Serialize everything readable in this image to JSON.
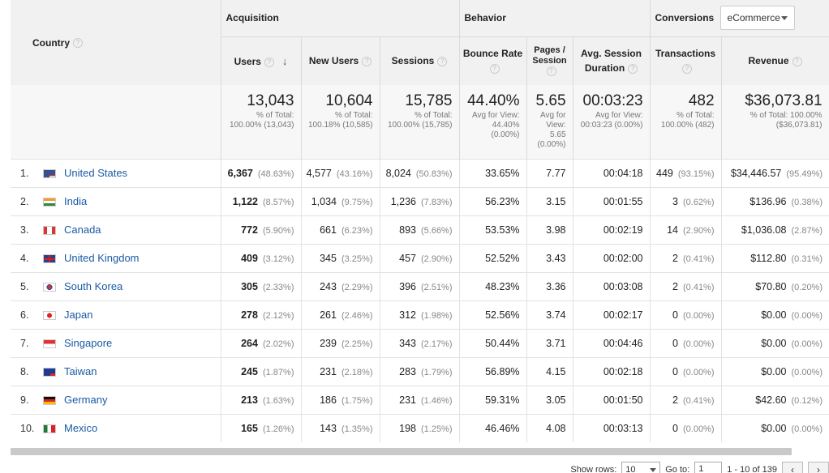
{
  "header": {
    "country": "Country",
    "acquisition": "Acquisition",
    "behavior": "Behavior",
    "conversions": "Conversions",
    "conversion_select": "eCommerce",
    "cols": {
      "users": "Users",
      "new_users": "New Users",
      "sessions": "Sessions",
      "bounce_rate": "Bounce Rate",
      "pages_session": "Pages / Session",
      "avg_session_duration": "Avg. Session Duration",
      "transactions": "Transactions",
      "revenue": "Revenue"
    }
  },
  "totals": {
    "users": {
      "value": "13,043",
      "sub": "% of Total: 100.00% (13,043)"
    },
    "new_users": {
      "value": "10,604",
      "sub": "% of Total: 100.18% (10,585)"
    },
    "sessions": {
      "value": "15,785",
      "sub": "% of Total: 100.00% (15,785)"
    },
    "bounce_rate": {
      "value": "44.40%",
      "sub": "Avg for View: 44.40% (0.00%)"
    },
    "pages_session": {
      "value": "5.65",
      "sub": "Avg for View: 5.65 (0.00%)"
    },
    "avg_session_duration": {
      "value": "00:03:23",
      "sub": "Avg for View: 00:03:23 (0.00%)"
    },
    "transactions": {
      "value": "482",
      "sub": "% of Total: 100.00% (482)"
    },
    "revenue": {
      "value": "$36,073.81",
      "sub": "% of Total: 100.00% ($36,073.81)"
    }
  },
  "rows": [
    {
      "rank": "1.",
      "country": "United States",
      "flag": "us-flag",
      "users": "6,367",
      "users_pct": "(48.63%)",
      "new_users": "4,577",
      "new_users_pct": "(43.16%)",
      "sessions": "8,024",
      "sessions_pct": "(50.83%)",
      "bounce": "33.65%",
      "pages": "7.77",
      "duration": "00:04:18",
      "trans": "449",
      "trans_pct": "(93.15%)",
      "revenue": "$34,446.57",
      "revenue_pct": "(95.49%)"
    },
    {
      "rank": "2.",
      "country": "India",
      "flag": "in-flag",
      "users": "1,122",
      "users_pct": "(8.57%)",
      "new_users": "1,034",
      "new_users_pct": "(9.75%)",
      "sessions": "1,236",
      "sessions_pct": "(7.83%)",
      "bounce": "56.23%",
      "pages": "3.15",
      "duration": "00:01:55",
      "trans": "3",
      "trans_pct": "(0.62%)",
      "revenue": "$136.96",
      "revenue_pct": "(0.38%)"
    },
    {
      "rank": "3.",
      "country": "Canada",
      "flag": "ca-flag",
      "users": "772",
      "users_pct": "(5.90%)",
      "new_users": "661",
      "new_users_pct": "(6.23%)",
      "sessions": "893",
      "sessions_pct": "(5.66%)",
      "bounce": "53.53%",
      "pages": "3.98",
      "duration": "00:02:19",
      "trans": "14",
      "trans_pct": "(2.90%)",
      "revenue": "$1,036.08",
      "revenue_pct": "(2.87%)"
    },
    {
      "rank": "4.",
      "country": "United Kingdom",
      "flag": "gb-flag",
      "users": "409",
      "users_pct": "(3.12%)",
      "new_users": "345",
      "new_users_pct": "(3.25%)",
      "sessions": "457",
      "sessions_pct": "(2.90%)",
      "bounce": "52.52%",
      "pages": "3.43",
      "duration": "00:02:00",
      "trans": "2",
      "trans_pct": "(0.41%)",
      "revenue": "$112.80",
      "revenue_pct": "(0.31%)"
    },
    {
      "rank": "5.",
      "country": "South Korea",
      "flag": "kr-flag",
      "users": "305",
      "users_pct": "(2.33%)",
      "new_users": "243",
      "new_users_pct": "(2.29%)",
      "sessions": "396",
      "sessions_pct": "(2.51%)",
      "bounce": "48.23%",
      "pages": "3.36",
      "duration": "00:03:08",
      "trans": "2",
      "trans_pct": "(0.41%)",
      "revenue": "$70.80",
      "revenue_pct": "(0.20%)"
    },
    {
      "rank": "6.",
      "country": "Japan",
      "flag": "jp-flag",
      "users": "278",
      "users_pct": "(2.12%)",
      "new_users": "261",
      "new_users_pct": "(2.46%)",
      "sessions": "312",
      "sessions_pct": "(1.98%)",
      "bounce": "52.56%",
      "pages": "3.74",
      "duration": "00:02:17",
      "trans": "0",
      "trans_pct": "(0.00%)",
      "revenue": "$0.00",
      "revenue_pct": "(0.00%)"
    },
    {
      "rank": "7.",
      "country": "Singapore",
      "flag": "sg-flag",
      "users": "264",
      "users_pct": "(2.02%)",
      "new_users": "239",
      "new_users_pct": "(2.25%)",
      "sessions": "343",
      "sessions_pct": "(2.17%)",
      "bounce": "50.44%",
      "pages": "3.71",
      "duration": "00:04:46",
      "trans": "0",
      "trans_pct": "(0.00%)",
      "revenue": "$0.00",
      "revenue_pct": "(0.00%)"
    },
    {
      "rank": "8.",
      "country": "Taiwan",
      "flag": "tw-flag",
      "users": "245",
      "users_pct": "(1.87%)",
      "new_users": "231",
      "new_users_pct": "(2.18%)",
      "sessions": "283",
      "sessions_pct": "(1.79%)",
      "bounce": "56.89%",
      "pages": "4.15",
      "duration": "00:02:18",
      "trans": "0",
      "trans_pct": "(0.00%)",
      "revenue": "$0.00",
      "revenue_pct": "(0.00%)"
    },
    {
      "rank": "9.",
      "country": "Germany",
      "flag": "de-flag",
      "users": "213",
      "users_pct": "(1.63%)",
      "new_users": "186",
      "new_users_pct": "(1.75%)",
      "sessions": "231",
      "sessions_pct": "(1.46%)",
      "bounce": "59.31%",
      "pages": "3.05",
      "duration": "00:01:50",
      "trans": "2",
      "trans_pct": "(0.41%)",
      "revenue": "$42.60",
      "revenue_pct": "(0.12%)"
    },
    {
      "rank": "10.",
      "country": "Mexico",
      "flag": "mx-flag",
      "users": "165",
      "users_pct": "(1.26%)",
      "new_users": "143",
      "new_users_pct": "(1.35%)",
      "sessions": "198",
      "sessions_pct": "(1.25%)",
      "bounce": "46.46%",
      "pages": "4.08",
      "duration": "00:03:13",
      "trans": "0",
      "trans_pct": "(0.00%)",
      "revenue": "$0.00",
      "revenue_pct": "(0.00%)"
    }
  ],
  "footer": {
    "show_rows_label": "Show rows:",
    "show_rows_value": "10",
    "goto_label": "Go to:",
    "goto_value": "1",
    "range": "1 - 10 of 139"
  },
  "colors": {
    "link": "#1a5aa5",
    "header_bg": "#f1f1f1",
    "totals_bg": "#f7f7f7"
  }
}
